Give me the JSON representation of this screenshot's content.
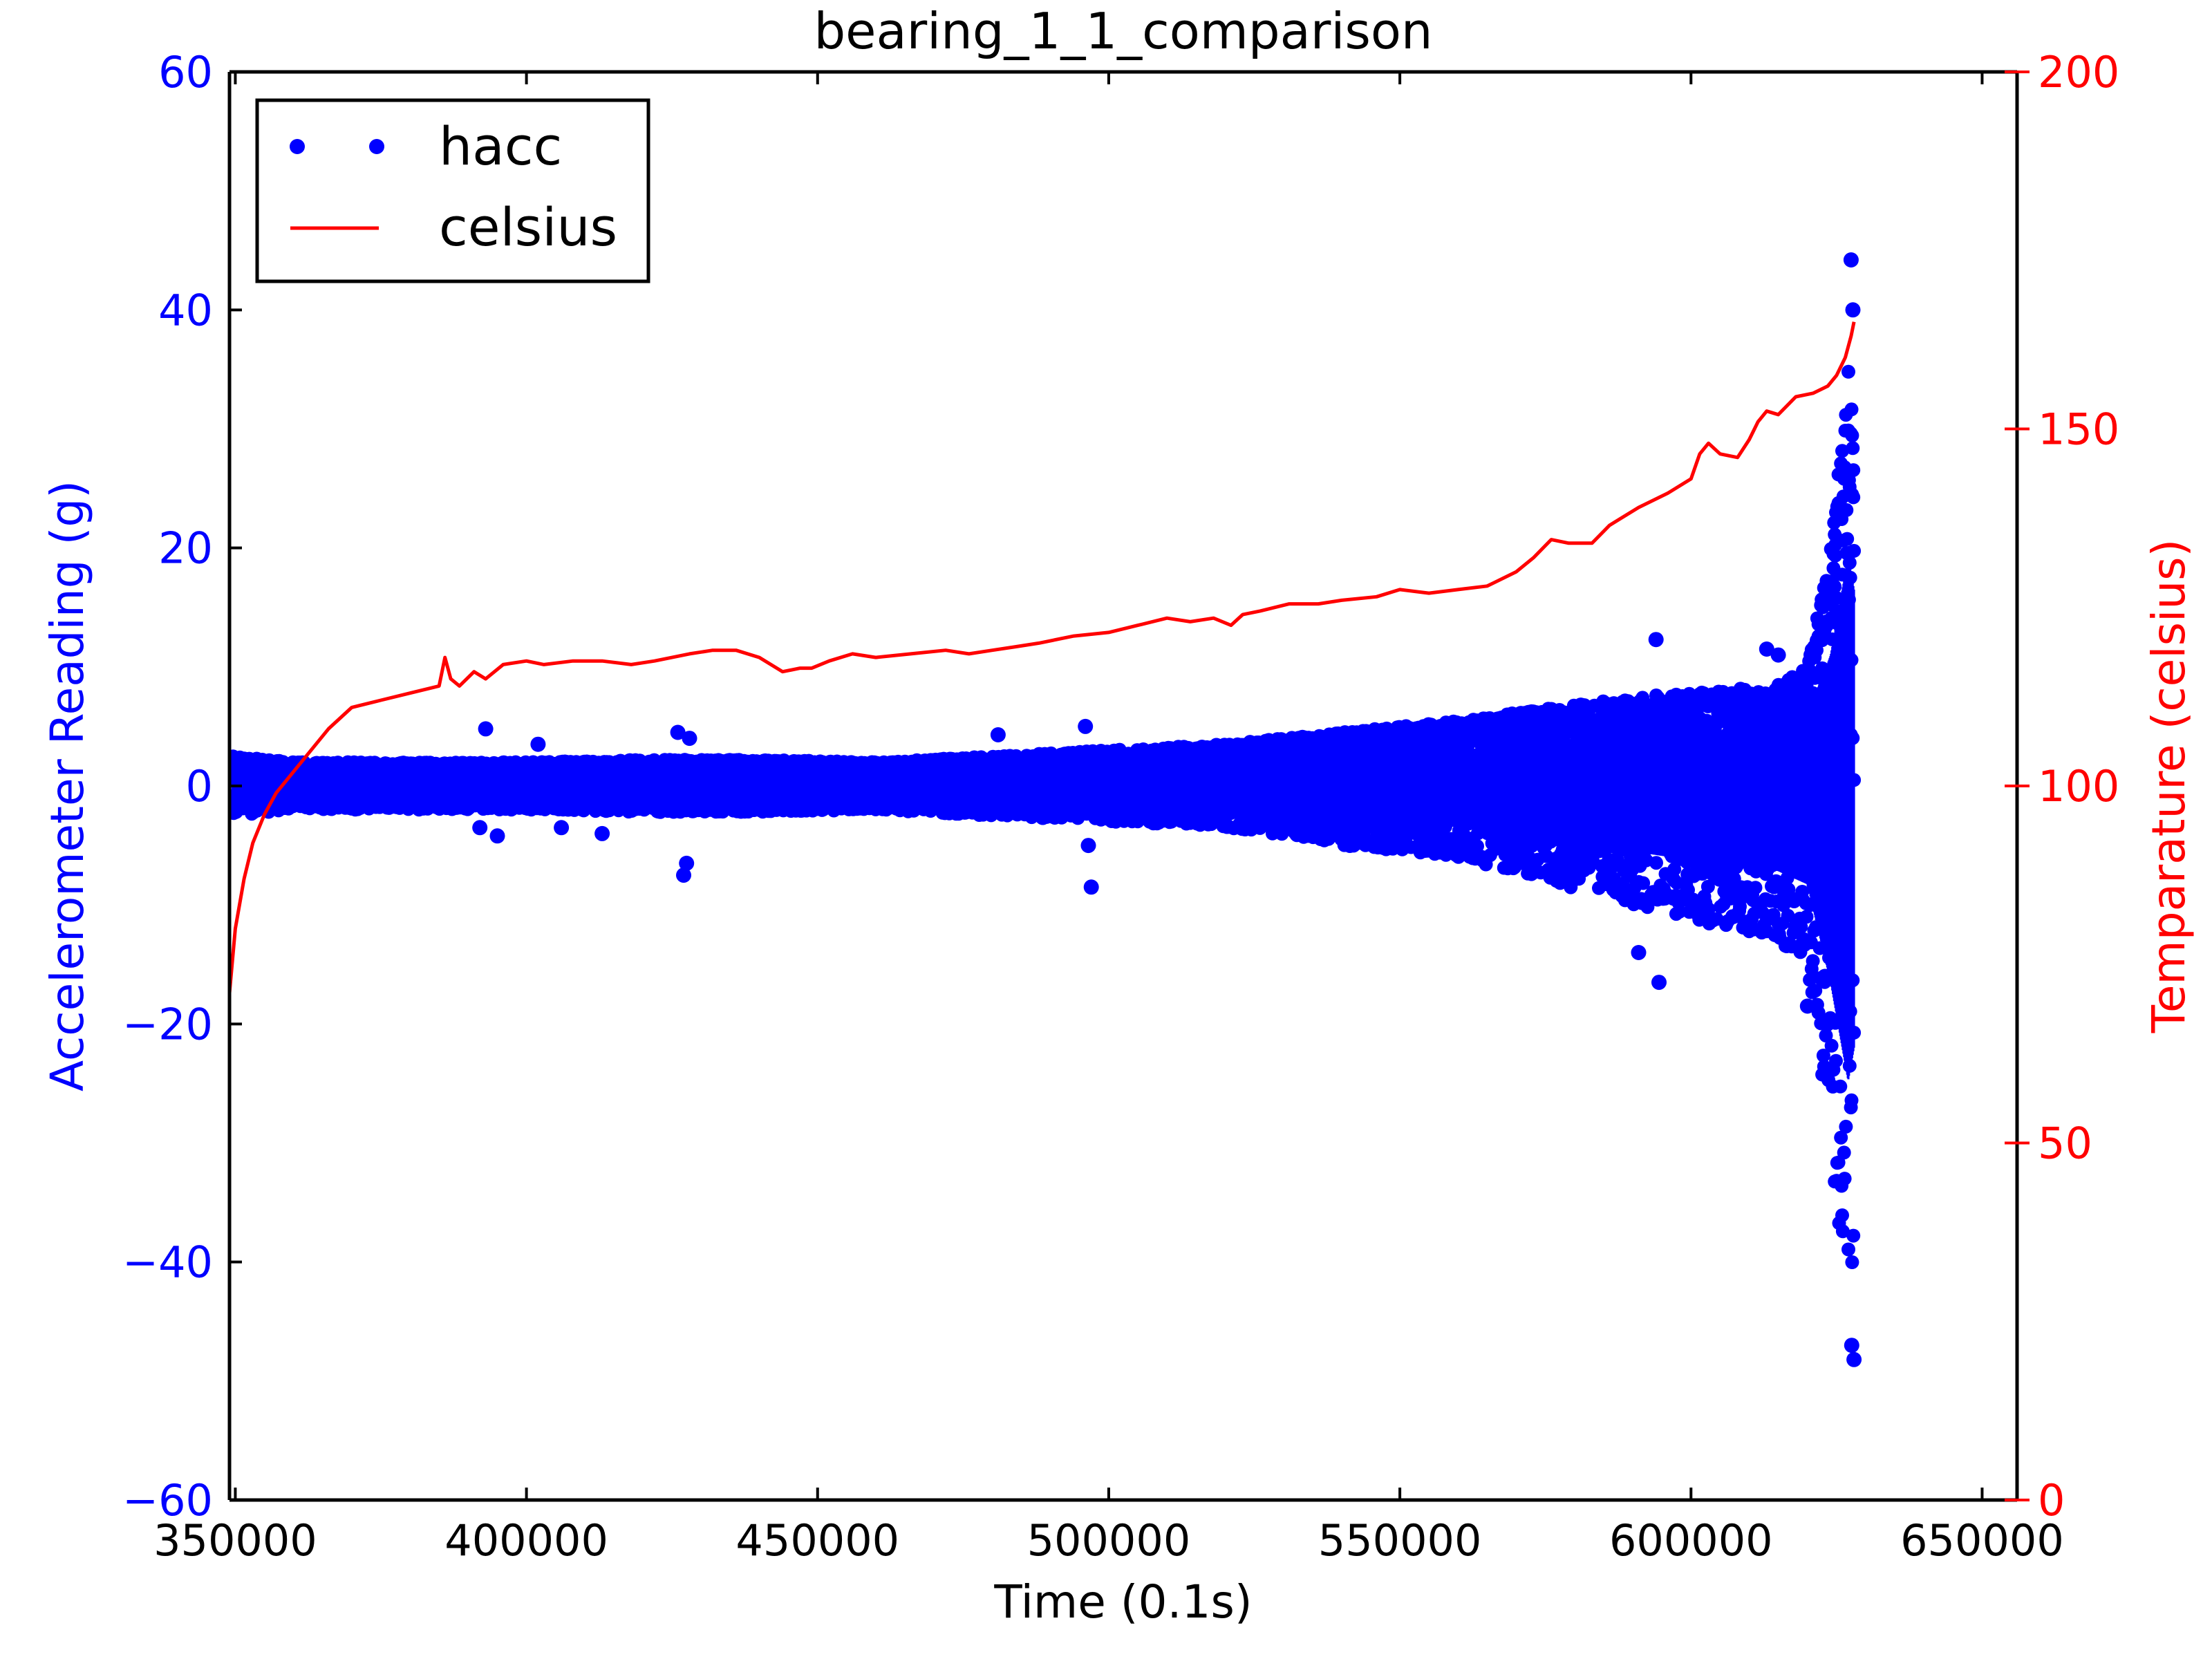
{
  "chart_data": {
    "type": "scatter",
    "title": "bearing_1_1_comparison",
    "xlabel": "Time (0.1s)",
    "ylabel": "Accelerometer Reading (g)",
    "y2label": "Temparature (celsius)",
    "xlim": [
      349000,
      656000
    ],
    "ylim": [
      -60,
      60
    ],
    "y2lim": [
      0,
      200
    ],
    "xticks": [
      350000,
      400000,
      450000,
      500000,
      550000,
      600000,
      650000
    ],
    "xtick_labels": [
      "350000",
      "400000",
      "450000",
      "500000",
      "550000",
      "600000",
      "650000"
    ],
    "yticks": [
      -60,
      -40,
      -20,
      0,
      20,
      40,
      60
    ],
    "ytick_labels": [
      "−60",
      "−40",
      "−20",
      "0",
      "20",
      "40",
      "60"
    ],
    "y2ticks": [
      0,
      50,
      100,
      150,
      200
    ],
    "y2tick_labels": [
      "0",
      "50",
      "100",
      "150",
      "200"
    ],
    "grid": false,
    "legend": "top-left",
    "colors": {
      "hacc": "#0000ff",
      "celsius": "#ff0000",
      "axes": "#000000"
    },
    "series": [
      {
        "name": "hacc",
        "type": "scatter",
        "axis": "left",
        "envelope": {
          "x": [
            349500,
            360000,
            380000,
            400000,
            420000,
            440000,
            460000,
            480000,
            500000,
            520000,
            540000,
            560000,
            575000,
            590000,
            605000,
            615000,
            620000,
            624000,
            627000,
            628000
          ],
          "ymax": [
            2.5,
            2.0,
            2.0,
            2.0,
            2.2,
            2.2,
            2.0,
            2.5,
            3.0,
            3.5,
            4.5,
            5.5,
            6.5,
            7.5,
            8.0,
            8.5,
            10,
            20,
            35,
            30
          ],
          "ymin": [
            -2.5,
            -2.0,
            -2.0,
            -2.0,
            -2.2,
            -2.2,
            -2.0,
            -2.5,
            -3.0,
            -3.5,
            -5.0,
            -6.0,
            -8.0,
            -10,
            -12,
            -13,
            -15,
            -30,
            -45,
            -40
          ]
        },
        "outliers": {
          "x": [
            393000,
            395000,
            392000,
            402000,
            406000,
            413000,
            426000,
            427000,
            428000,
            427500,
            481000,
            496000,
            497000,
            496500,
            594000,
            594500,
            591000,
            613000,
            615000,
            620000,
            623000,
            627500,
            627800,
            628000,
            627600
          ],
          "y": [
            4.8,
            -4.2,
            -3.5,
            3.5,
            -3.5,
            -4.0,
            4.5,
            -7.5,
            4.0,
            -6.5,
            4.3,
            5.0,
            -8.5,
            -5.0,
            12.3,
            -16.5,
            -14.0,
            11.5,
            11.0,
            -18.5,
            -16.0,
            44.2,
            40.0,
            -48.2,
            -47.0
          ]
        }
      },
      {
        "name": "celsius",
        "type": "line",
        "axis": "right",
        "x": [
          349000,
          350000,
          351500,
          353000,
          355000,
          357000,
          359000,
          362000,
          366000,
          370000,
          375000,
          380000,
          385000,
          386000,
          387000,
          388500,
          391000,
          393000,
          396000,
          400000,
          403000,
          408000,
          413000,
          418000,
          422000,
          425000,
          428000,
          432000,
          436000,
          440000,
          444000,
          447000,
          449000,
          452000,
          456000,
          460000,
          466000,
          472000,
          476000,
          480000,
          484000,
          488000,
          494000,
          500000,
          505000,
          510000,
          514000,
          518000,
          521000,
          523000,
          526000,
          531000,
          536000,
          540000,
          546000,
          550000,
          555000,
          560000,
          565000,
          570000,
          573000,
          576000,
          579000,
          583000,
          586000,
          588000,
          591000,
          596000,
          600000,
          601500,
          603000,
          605000,
          608000,
          610000,
          611500,
          613000,
          615000,
          618000,
          621000,
          623500,
          625000,
          626500,
          627500,
          628000
        ],
        "y": [
          71,
          80,
          87,
          92,
          96,
          99,
          101,
          104,
          108,
          111,
          112,
          113,
          114,
          118,
          115,
          114,
          116,
          115,
          117,
          117.5,
          117,
          117.5,
          117.5,
          117,
          117.5,
          118,
          118.5,
          119,
          119,
          118,
          116,
          116.5,
          116.5,
          117.5,
          118.5,
          118,
          118.5,
          119,
          118.5,
          119,
          119.5,
          120,
          121,
          121.5,
          122.5,
          123.5,
          123,
          123.5,
          122.5,
          124,
          124.5,
          125.5,
          125.5,
          126,
          126.5,
          127.5,
          127,
          127.5,
          128,
          130,
          132,
          134.5,
          134,
          134,
          136.5,
          137.5,
          139,
          141,
          143,
          146.5,
          148,
          146.5,
          146,
          148.5,
          151,
          152.5,
          152,
          154.5,
          155,
          156,
          157.5,
          160,
          163,
          165
        ]
      }
    ]
  }
}
